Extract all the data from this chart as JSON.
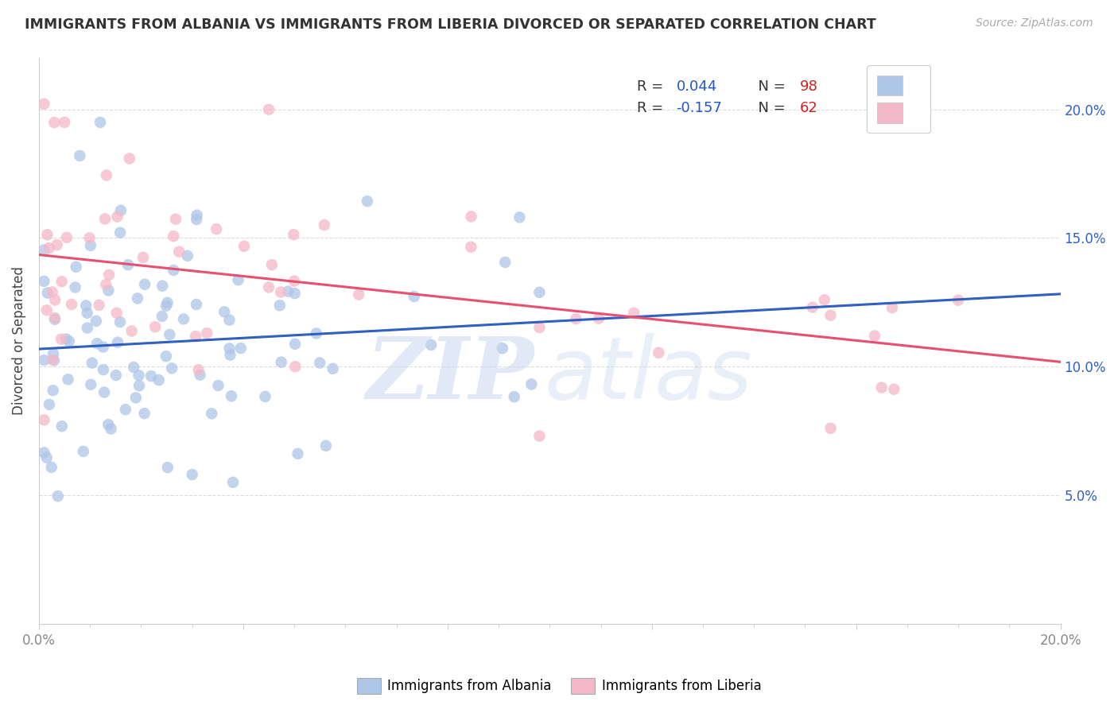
{
  "title": "IMMIGRANTS FROM ALBANIA VS IMMIGRANTS FROM LIBERIA DIVORCED OR SEPARATED CORRELATION CHART",
  "source": "Source: ZipAtlas.com",
  "ylabel_left": "Divorced or Separated",
  "xlim": [
    0.0,
    0.2
  ],
  "ylim": [
    0.0,
    0.22
  ],
  "albania_color": "#aec6e8",
  "liberia_color": "#f5b8c8",
  "albania_line_color": "#3060c0",
  "liberia_line_color": "#e85070",
  "albania_R": 0.044,
  "albania_N": 98,
  "liberia_R": -0.157,
  "liberia_N": 62,
  "legend_R_color": "#2255cc",
  "legend_N_color": "#cc2222",
  "right_tick_color": "#3060c0",
  "grid_color": "#dddddd",
  "dashed_line_color": "#bbbbbb"
}
